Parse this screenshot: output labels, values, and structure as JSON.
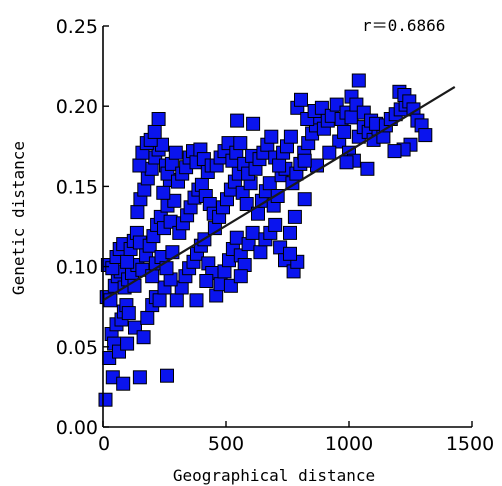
{
  "chart_data": {
    "type": "scatter",
    "title": "",
    "xlabel": "Geographical distance",
    "ylabel": "Genetic distance",
    "annotation": "r＝0.6866",
    "xlim": [
      0,
      1500
    ],
    "ylim": [
      0,
      0.25
    ],
    "x_ticks": [
      0,
      500,
      1000,
      1500
    ],
    "x_tick_labels": [
      "0",
      "500",
      "1000",
      "1500"
    ],
    "y_ticks": [
      0,
      0.05,
      0.1,
      0.15,
      0.2,
      0.25
    ],
    "y_tick_labels": [
      "0.00",
      "0.05",
      "0.10",
      "0.15",
      "0.20",
      "0.25"
    ],
    "grid": false,
    "legend": "none",
    "marker_color": "#0a14ee",
    "fit_line": {
      "x": [
        0,
        1430
      ],
      "y": [
        0.079,
        0.212
      ]
    },
    "points": [
      [
        10,
        0.017
      ],
      [
        25,
        0.043
      ],
      [
        35,
        0.058
      ],
      [
        45,
        0.052
      ],
      [
        55,
        0.064
      ],
      [
        65,
        0.047
      ],
      [
        75,
        0.067
      ],
      [
        85,
        0.072
      ],
      [
        95,
        0.076
      ],
      [
        105,
        0.071
      ],
      [
        15,
        0.081
      ],
      [
        30,
        0.079
      ],
      [
        48,
        0.088
      ],
      [
        60,
        0.094
      ],
      [
        72,
        0.097
      ],
      [
        88,
        0.087
      ],
      [
        102,
        0.092
      ],
      [
        118,
        0.096
      ],
      [
        128,
        0.088
      ],
      [
        140,
        0.101
      ],
      [
        20,
        0.101
      ],
      [
        38,
        0.099
      ],
      [
        55,
        0.106
      ],
      [
        68,
        0.111
      ],
      [
        82,
        0.114
      ],
      [
        98,
        0.103
      ],
      [
        112,
        0.111
      ],
      [
        125,
        0.116
      ],
      [
        138,
        0.121
      ],
      [
        150,
        0.115
      ],
      [
        40,
        0.031
      ],
      [
        82,
        0.027
      ],
      [
        150,
        0.031
      ],
      [
        260,
        0.032
      ],
      [
        98,
        0.052
      ],
      [
        130,
        0.062
      ],
      [
        165,
        0.056
      ],
      [
        180,
        0.068
      ],
      [
        200,
        0.076
      ],
      [
        215,
        0.081
      ],
      [
        160,
        0.098
      ],
      [
        175,
        0.107
      ],
      [
        190,
        0.113
      ],
      [
        205,
        0.119
      ],
      [
        220,
        0.126
      ],
      [
        235,
        0.131
      ],
      [
        248,
        0.124
      ],
      [
        262,
        0.138
      ],
      [
        275,
        0.128
      ],
      [
        290,
        0.141
      ],
      [
        140,
        0.134
      ],
      [
        152,
        0.142
      ],
      [
        168,
        0.148
      ],
      [
        182,
        0.155
      ],
      [
        198,
        0.161
      ],
      [
        212,
        0.168
      ],
      [
        226,
        0.173
      ],
      [
        240,
        0.176
      ],
      [
        256,
        0.163
      ],
      [
        272,
        0.154
      ],
      [
        148,
        0.163
      ],
      [
        160,
        0.171
      ],
      [
        178,
        0.177
      ],
      [
        194,
        0.179
      ],
      [
        210,
        0.184
      ],
      [
        226,
        0.192
      ],
      [
        245,
        0.146
      ],
      [
        262,
        0.158
      ],
      [
        280,
        0.164
      ],
      [
        296,
        0.171
      ],
      [
        300,
        0.079
      ],
      [
        320,
        0.087
      ],
      [
        335,
        0.094
      ],
      [
        350,
        0.099
      ],
      [
        368,
        0.103
      ],
      [
        382,
        0.108
      ],
      [
        398,
        0.113
      ],
      [
        412,
        0.117
      ],
      [
        428,
        0.102
      ],
      [
        444,
        0.096
      ],
      [
        310,
        0.121
      ],
      [
        325,
        0.127
      ],
      [
        342,
        0.132
      ],
      [
        356,
        0.137
      ],
      [
        372,
        0.143
      ],
      [
        388,
        0.148
      ],
      [
        402,
        0.151
      ],
      [
        418,
        0.144
      ],
      [
        434,
        0.139
      ],
      [
        450,
        0.133
      ],
      [
        305,
        0.153
      ],
      [
        322,
        0.158
      ],
      [
        338,
        0.162
      ],
      [
        352,
        0.168
      ],
      [
        366,
        0.172
      ],
      [
        380,
        0.165
      ],
      [
        396,
        0.173
      ],
      [
        410,
        0.167
      ],
      [
        426,
        0.159
      ],
      [
        442,
        0.163
      ],
      [
        460,
        0.082
      ],
      [
        478,
        0.089
      ],
      [
        494,
        0.097
      ],
      [
        512,
        0.104
      ],
      [
        528,
        0.111
      ],
      [
        544,
        0.118
      ],
      [
        560,
        0.107
      ],
      [
        576,
        0.101
      ],
      [
        592,
        0.114
      ],
      [
        608,
        0.121
      ],
      [
        455,
        0.124
      ],
      [
        472,
        0.131
      ],
      [
        488,
        0.137
      ],
      [
        504,
        0.142
      ],
      [
        520,
        0.148
      ],
      [
        536,
        0.153
      ],
      [
        552,
        0.158
      ],
      [
        568,
        0.146
      ],
      [
        584,
        0.139
      ],
      [
        600,
        0.152
      ],
      [
        462,
        0.163
      ],
      [
        478,
        0.168
      ],
      [
        494,
        0.172
      ],
      [
        510,
        0.177
      ],
      [
        526,
        0.166
      ],
      [
        542,
        0.171
      ],
      [
        558,
        0.177
      ],
      [
        574,
        0.164
      ],
      [
        590,
        0.158
      ],
      [
        606,
        0.169
      ],
      [
        545,
        0.191
      ],
      [
        610,
        0.189
      ],
      [
        630,
        0.133
      ],
      [
        646,
        0.141
      ],
      [
        662,
        0.147
      ],
      [
        678,
        0.152
      ],
      [
        694,
        0.138
      ],
      [
        710,
        0.144
      ],
      [
        726,
        0.157
      ],
      [
        742,
        0.161
      ],
      [
        620,
        0.161
      ],
      [
        636,
        0.167
      ],
      [
        652,
        0.171
      ],
      [
        668,
        0.176
      ],
      [
        684,
        0.181
      ],
      [
        700,
        0.168
      ],
      [
        716,
        0.163
      ],
      [
        732,
        0.171
      ],
      [
        748,
        0.175
      ],
      [
        764,
        0.181
      ],
      [
        640,
        0.109
      ],
      [
        660,
        0.117
      ],
      [
        680,
        0.121
      ],
      [
        700,
        0.126
      ],
      [
        720,
        0.112
      ],
      [
        740,
        0.104
      ],
      [
        760,
        0.121
      ],
      [
        775,
        0.097
      ],
      [
        790,
        0.103
      ],
      [
        780,
        0.131
      ],
      [
        770,
        0.152
      ],
      [
        786,
        0.158
      ],
      [
        802,
        0.164
      ],
      [
        818,
        0.171
      ],
      [
        834,
        0.177
      ],
      [
        850,
        0.183
      ],
      [
        866,
        0.188
      ],
      [
        882,
        0.193
      ],
      [
        898,
        0.186
      ],
      [
        914,
        0.191
      ],
      [
        790,
        0.199
      ],
      [
        805,
        0.204
      ],
      [
        830,
        0.192
      ],
      [
        860,
        0.197
      ],
      [
        890,
        0.199
      ],
      [
        930,
        0.194
      ],
      [
        950,
        0.201
      ],
      [
        970,
        0.192
      ],
      [
        990,
        0.196
      ],
      [
        1010,
        0.193
      ],
      [
        960,
        0.178
      ],
      [
        980,
        0.184
      ],
      [
        1000,
        0.171
      ],
      [
        1020,
        0.166
      ],
      [
        1040,
        0.181
      ],
      [
        1060,
        0.187
      ],
      [
        1080,
        0.184
      ],
      [
        1100,
        0.179
      ],
      [
        1120,
        0.186
      ],
      [
        1140,
        0.181
      ],
      [
        1010,
        0.206
      ],
      [
        1030,
        0.201
      ],
      [
        1060,
        0.196
      ],
      [
        1090,
        0.191
      ],
      [
        1110,
        0.189
      ],
      [
        1150,
        0.188
      ],
      [
        1170,
        0.192
      ],
      [
        1190,
        0.195
      ],
      [
        1210,
        0.198
      ],
      [
        1230,
        0.201
      ],
      [
        1205,
        0.209
      ],
      [
        1225,
        0.207
      ],
      [
        1245,
        0.203
      ],
      [
        1262,
        0.198
      ],
      [
        1278,
        0.191
      ],
      [
        1295,
        0.188
      ],
      [
        1310,
        0.182
      ],
      [
        1250,
        0.176
      ],
      [
        1222,
        0.173
      ],
      [
        1185,
        0.172
      ],
      [
        1040,
        0.216
      ],
      [
        990,
        0.165
      ],
      [
        1075,
        0.161
      ],
      [
        920,
        0.171
      ],
      [
        870,
        0.163
      ],
      [
        820,
        0.166
      ],
      [
        820,
        0.142
      ],
      [
        760,
        0.108
      ],
      [
        380,
        0.079
      ],
      [
        420,
        0.091
      ],
      [
        230,
        0.079
      ],
      [
        250,
        0.087
      ],
      [
        275,
        0.092
      ],
      [
        200,
        0.094
      ],
      [
        215,
        0.102
      ],
      [
        238,
        0.106
      ],
      [
        258,
        0.099
      ],
      [
        282,
        0.109
      ],
      [
        520,
        0.088
      ],
      [
        560,
        0.094
      ]
    ]
  }
}
